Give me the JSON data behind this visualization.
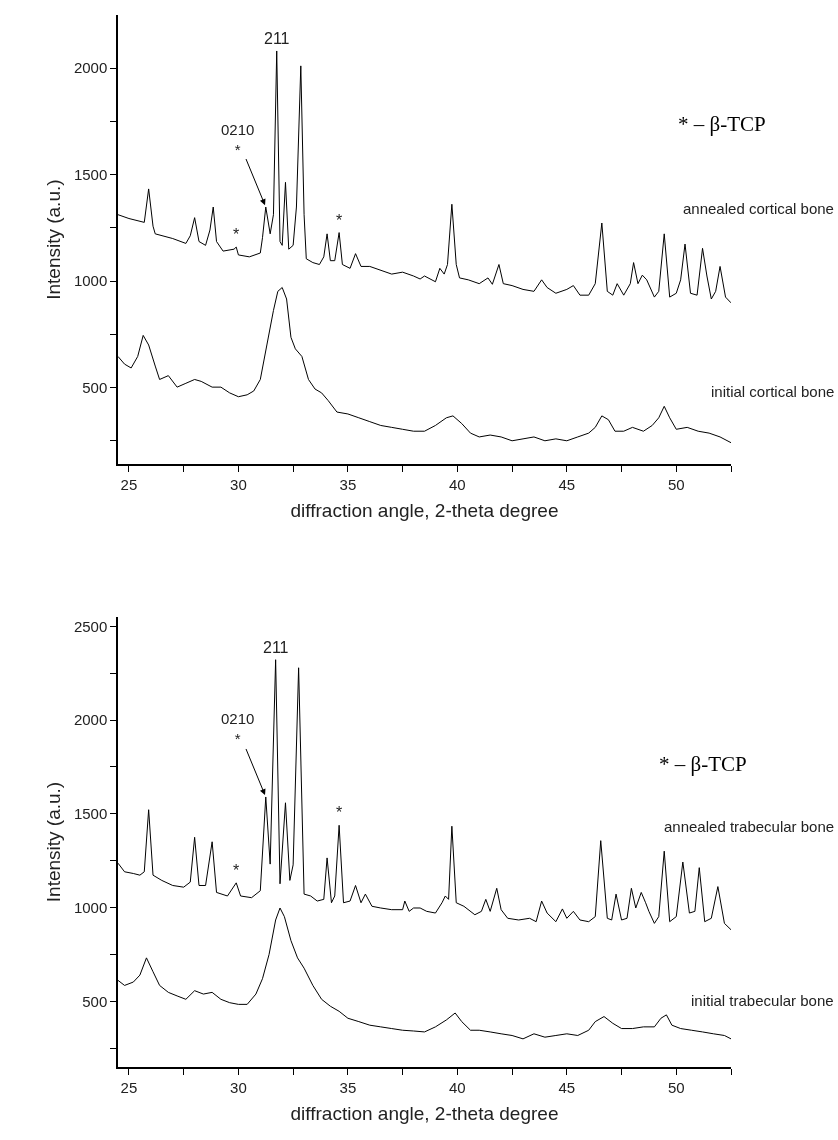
{
  "chart_data": [
    {
      "type": "line",
      "xlabel": "diffraction angle, 2-theta degree",
      "ylabel": "Intensity (a.u.)",
      "xlim": [
        24.5,
        52.5
      ],
      "xticks": [
        25,
        {
          "value": 27.5,
          "label": null
        },
        30,
        {
          "value": 32.5,
          "label": null
        },
        35,
        {
          "value": 37.5,
          "label": null
        },
        40,
        {
          "value": 42.5,
          "label": null
        },
        45,
        {
          "value": 47.5,
          "label": null
        },
        50,
        {
          "value": 52.5,
          "label": null
        }
      ],
      "ylim": [
        140,
        2250
      ],
      "yticks": [
        {
          "value": 250,
          "label": null
        },
        500,
        {
          "value": 750,
          "label": null
        },
        1000,
        {
          "value": 1250,
          "label": null
        },
        1500,
        {
          "value": 1750,
          "label": null
        },
        2000
      ],
      "series": [
        {
          "name": "annealed cortical bone",
          "color": "#000000",
          "x": [
            24.5,
            25,
            25.7,
            25.9,
            26.1,
            26.2,
            27,
            27.6,
            27.8,
            28.0,
            28.2,
            28.5,
            28.7,
            28.85,
            29.0,
            29.3,
            29.8,
            29.9,
            30.0,
            30.5,
            31.0,
            31.1,
            31.25,
            31.45,
            31.6,
            31.75,
            31.9,
            32.0,
            32.15,
            32.3,
            32.5,
            32.65,
            32.85,
            33.0,
            33.1,
            33.4,
            33.7,
            33.9,
            34.05,
            34.2,
            34.4,
            34.6,
            34.75,
            35.1,
            35.35,
            35.6,
            36,
            37,
            37.5,
            38,
            38.3,
            38.5,
            39,
            39.2,
            39.4,
            39.55,
            39.75,
            39.95,
            40.1,
            40.5,
            41,
            41.4,
            41.6,
            41.9,
            42.1,
            42.5,
            43,
            43.5,
            43.85,
            44.1,
            44.5,
            45,
            45.3,
            45.6,
            46,
            46.3,
            46.6,
            46.85,
            47.1,
            47.3,
            47.6,
            47.9,
            48.05,
            48.25,
            48.45,
            48.65,
            49,
            49.2,
            49.45,
            49.7,
            50,
            50.2,
            50.4,
            50.65,
            50.95,
            51.2,
            51.4,
            51.6,
            51.8,
            52.0,
            52.25,
            52.5
          ],
          "values": [
            1312,
            1294,
            1276,
            1433,
            1258,
            1222,
            1200,
            1177,
            1213,
            1298,
            1186,
            1168,
            1240,
            1348,
            1186,
            1141,
            1150,
            1160,
            1123,
            1114,
            1132,
            1204,
            1348,
            1222,
            1312,
            2081,
            1186,
            1168,
            1464,
            1150,
            1168,
            1348,
            2011,
            1312,
            1105,
            1087,
            1078,
            1114,
            1222,
            1096,
            1096,
            1228,
            1078,
            1060,
            1129,
            1069,
            1069,
            1033,
            1042,
            1024,
            1010,
            1024,
            997,
            1060,
            1033,
            1078,
            1361,
            1078,
            1015,
            1006,
            988,
            1015,
            985,
            1078,
            988,
            979,
            961,
            952,
            1006,
            970,
            943,
            961,
            979,
            934,
            934,
            988,
            1273,
            952,
            934,
            988,
            934,
            988,
            1087,
            988,
            1028,
            1006,
            925,
            952,
            1222,
            925,
            943,
            1006,
            1174,
            943,
            934,
            1154,
            1024,
            916,
            952,
            1069,
            925,
            898
          ]
        },
        {
          "name": "initial cortical bone",
          "color": "#000000",
          "x": [
            24.5,
            24.8,
            25.1,
            25.4,
            25.65,
            25.9,
            26.2,
            26.4,
            26.8,
            27.2,
            27.6,
            28.0,
            28.3,
            28.8,
            29.2,
            29.6,
            30,
            30.4,
            30.7,
            31.0,
            31.3,
            31.6,
            31.8,
            32.0,
            32.2,
            32.4,
            32.6,
            32.9,
            33.2,
            33.5,
            33.8,
            34.1,
            34.5,
            35,
            35.5,
            36,
            36.5,
            37,
            37.5,
            38,
            38.5,
            39,
            39.5,
            39.8,
            40.2,
            40.6,
            41,
            41.5,
            42,
            42.5,
            43,
            43.5,
            44,
            44.5,
            45,
            45.5,
            46,
            46.3,
            46.6,
            46.9,
            47.2,
            47.6,
            48,
            48.5,
            48.9,
            49.2,
            49.45,
            49.7,
            50,
            50.5,
            51,
            51.5,
            52,
            52.5
          ],
          "values": [
            646,
            610,
            592,
            646,
            745,
            700,
            601,
            538,
            556,
            502,
            520,
            538,
            529,
            502,
            502,
            475,
            457,
            466,
            484,
            538,
            700,
            862,
            952,
            970,
            916,
            736,
            682,
            646,
            538,
            493,
            475,
            439,
            385,
            376,
            358,
            340,
            322,
            313,
            304,
            295,
            295,
            322,
            358,
            367,
            331,
            286,
            268,
            277,
            268,
            250,
            259,
            268,
            250,
            259,
            250,
            268,
            286,
            313,
            367,
            349,
            295,
            295,
            313,
            295,
            322,
            358,
            412,
            358,
            304,
            313,
            295,
            286,
            268,
            241
          ]
        }
      ],
      "annotations": [
        {
          "text": "211",
          "x": 31.75,
          "y": 2081
        },
        {
          "text": "0210\n*",
          "x": 31.25,
          "y": 1348
        },
        {
          "text": "*",
          "x": 29.9,
          "y": 1160
        },
        {
          "text": "*",
          "x": 34.6,
          "y": 1228
        },
        "* – β-TCP"
      ]
    },
    {
      "type": "line",
      "xlabel": "diffraction angle, 2-theta degree",
      "ylabel": "Intensity (a.u.)",
      "xlim": [
        24.5,
        52.5
      ],
      "xticks": [
        25,
        {
          "value": 27.5,
          "label": null
        },
        30,
        {
          "value": 32.5,
          "label": null
        },
        35,
        {
          "value": 37.5,
          "label": null
        },
        40,
        {
          "value": 42.5,
          "label": null
        },
        45,
        {
          "value": 47.5,
          "label": null
        },
        50,
        {
          "value": 52.5,
          "label": null
        }
      ],
      "ylim": [
        150,
        2550
      ],
      "yticks": [
        {
          "value": 250,
          "label": null
        },
        500,
        {
          "value": 750,
          "label": null
        },
        1000,
        {
          "value": 1250,
          "label": null
        },
        1500,
        {
          "value": 1750,
          "label": null
        },
        2000,
        {
          "value": 2250,
          "label": null
        },
        2500
      ],
      "series": [
        {
          "name": "annealed trabecular bone",
          "color": "#000000",
          "x": [
            24.5,
            24.8,
            25.2,
            25.5,
            25.7,
            25.9,
            26.1,
            26.5,
            27,
            27.5,
            27.8,
            28.0,
            28.2,
            28.5,
            28.8,
            29.0,
            29.5,
            29.9,
            30.1,
            30.6,
            31.0,
            31.25,
            31.45,
            31.7,
            31.9,
            32.15,
            32.35,
            32.5,
            32.75,
            33.0,
            33.3,
            33.6,
            33.9,
            34.05,
            34.25,
            34.4,
            34.6,
            34.8,
            35.1,
            35.35,
            35.6,
            35.8,
            36.1,
            36.5,
            37,
            37.5,
            37.6,
            37.8,
            38.0,
            38.3,
            38.6,
            39,
            39.3,
            39.45,
            39.6,
            39.75,
            39.95,
            40.3,
            40.8,
            41.1,
            41.3,
            41.5,
            41.8,
            42.0,
            42.3,
            42.8,
            43.3,
            43.6,
            43.85,
            44.1,
            44.5,
            44.8,
            45.0,
            45.3,
            45.6,
            46.0,
            46.3,
            46.55,
            46.85,
            47.05,
            47.25,
            47.5,
            47.75,
            47.95,
            48.15,
            48.4,
            48.6,
            48.75,
            49.0,
            49.2,
            49.45,
            49.7,
            50.0,
            50.3,
            50.6,
            50.85,
            51.05,
            51.3,
            51.6,
            51.9,
            52.2,
            52.5
          ],
          "values": [
            1237,
            1191,
            1182,
            1173,
            1191,
            1522,
            1173,
            1145,
            1118,
            1109,
            1136,
            1375,
            1118,
            1118,
            1351,
            1081,
            1062,
            1132,
            1062,
            1053,
            1090,
            1590,
            1232,
            2322,
            1127,
            1559,
            1145,
            1228,
            2279,
            1072,
            1062,
            1035,
            1044,
            1265,
            1026,
            1062,
            1439,
            1026,
            1035,
            1118,
            1026,
            1072,
            1007,
            998,
            989,
            989,
            1035,
            980,
            998,
            998,
            980,
            971,
            1026,
            1062,
            1044,
            1434,
            1026,
            1007,
            962,
            980,
            1044,
            980,
            1103,
            989,
            943,
            934,
            943,
            925,
            1035,
            971,
            925,
            993,
            943,
            980,
            934,
            925,
            952,
            1357,
            943,
            934,
            1072,
            934,
            943,
            1103,
            998,
            1081,
            1026,
            980,
            916,
            952,
            1301,
            925,
            952,
            1243,
            971,
            980,
            1213,
            925,
            943,
            1112,
            916,
            882
          ]
        },
        {
          "name": "initial trabecular bone",
          "color": "#000000",
          "x": [
            24.5,
            24.8,
            25.2,
            25.5,
            25.8,
            26.1,
            26.4,
            26.8,
            27.2,
            27.6,
            28.0,
            28.4,
            28.8,
            29.2,
            29.6,
            30.0,
            30.4,
            30.8,
            31.1,
            31.4,
            31.7,
            31.9,
            32.1,
            32.4,
            32.7,
            33.0,
            33.4,
            33.8,
            34.2,
            34.6,
            35,
            35.5,
            36,
            36.5,
            37,
            37.5,
            38,
            38.5,
            39,
            39.5,
            39.9,
            40.2,
            40.6,
            41,
            41.5,
            42,
            42.5,
            43,
            43.5,
            44,
            44.5,
            45,
            45.5,
            46,
            46.3,
            46.7,
            47.1,
            47.5,
            48,
            48.5,
            49,
            49.3,
            49.55,
            49.8,
            50.2,
            50.7,
            51.2,
            51.7,
            52.2,
            52.5
          ],
          "values": [
            612,
            585,
            603,
            640,
            732,
            658,
            585,
            548,
            529,
            511,
            557,
            539,
            548,
            511,
            493,
            484,
            484,
            539,
            621,
            750,
            934,
            998,
            952,
            824,
            732,
            677,
            585,
            511,
            474,
            447,
            410,
            392,
            373,
            364,
            355,
            346,
            342,
            337,
            364,
            401,
            438,
            392,
            346,
            346,
            337,
            327,
            318,
            300,
            327,
            309,
            318,
            327,
            318,
            346,
            392,
            419,
            383,
            355,
            355,
            364,
            364,
            410,
            428,
            373,
            355,
            346,
            337,
            327,
            318,
            300
          ]
        }
      ],
      "annotations": [
        {
          "text": "211",
          "x": 31.7,
          "y": 2322
        },
        {
          "text": "0210\n*",
          "x": 31.25,
          "y": 1590
        },
        {
          "text": "*",
          "x": 29.9,
          "y": 1132
        },
        {
          "text": "*",
          "x": 34.6,
          "y": 1439
        },
        "* – β-TCP"
      ]
    }
  ]
}
